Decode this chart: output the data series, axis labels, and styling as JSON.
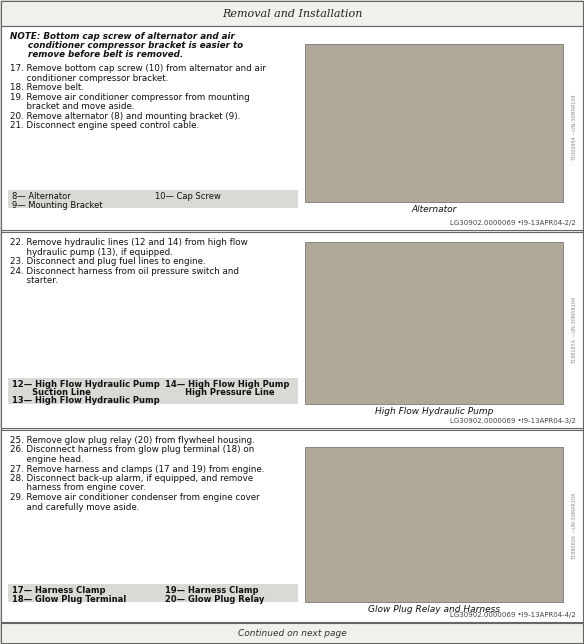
{
  "page_title": "Removal and Installation",
  "background_color": "#f0eeeb",
  "section1": {
    "note_line1": "NOTE: Bottom cap screw of alternator and air",
    "note_line2": "      conditioner compressor bracket is easier to",
    "note_line3": "      remove before belt is removed.",
    "steps": [
      "17. Remove bottom cap screw (10) from alternator and air",
      "      conditioner compressor bracket.",
      "18. Remove belt.",
      "19. Remove air conditioner compressor from mounting",
      "      bracket and move aside.",
      "20. Remove alternator (8) and mounting bracket (9).",
      "21. Disconnect engine speed control cable."
    ],
    "legend1_col1_l1": "8— Alternator",
    "legend1_col1_l2": "9— Mounting Bracket",
    "legend1_col2_l1": "10— Cap Screw",
    "photo_label": "Alternator",
    "footer": "LG30902.0000069 •I9-13APR04-2/2"
  },
  "section2": {
    "steps": [
      "22. Remove hydraulic lines (12 and 14) from high flow",
      "      hydraulic pump (13), if equipped.",
      "23. Disconnect and plug fuel lines to engine.",
      "24. Disconnect harness from oil pressure switch and",
      "      starter."
    ],
    "legend2_col1_l1": "12— High Flow Hydraulic Pump",
    "legend2_col1_l2": "       Suction Line",
    "legend2_col1_l3": "13— High Flow Hydraulic Pump",
    "legend2_col2_l1": "14— High Flow High Pump",
    "legend2_col2_l2": "       High Pressure Line",
    "photo_label": "High Flow Hydraulic Pump",
    "footer": "LG30902.0000069 •I9-13APR04-3/2"
  },
  "section3": {
    "steps": [
      "25. Remove glow plug relay (20) from flywheel housing.",
      "26. Disconnect harness from glow plug terminal (18) on",
      "      engine head.",
      "27. Remove harness and clamps (17 and 19) from engine.",
      "28. Disconnect back-up alarm, if equipped, and remove",
      "      harness from engine cover.",
      "29. Remove air conditioner condenser from engine cover",
      "      and carefully move aside."
    ],
    "legend3_col1_l1": "17— Harness Clamp",
    "legend3_col1_l2": "18— Glow Plug Terminal",
    "legend3_col2_l1": "19— Harness Clamp",
    "legend3_col2_l2": "20— Glow Plug Relay",
    "photo_label": "Glow Plug Relay and Harness",
    "footer": "LG30902.0000069 •I9-13APR04-4/2"
  },
  "bottom_note": "Continued on next page",
  "photo_bg": "#b0a898",
  "legend_bg": "#dbd9d5",
  "border_color": "#666666",
  "text_color": "#111111",
  "footer_color": "#444444"
}
